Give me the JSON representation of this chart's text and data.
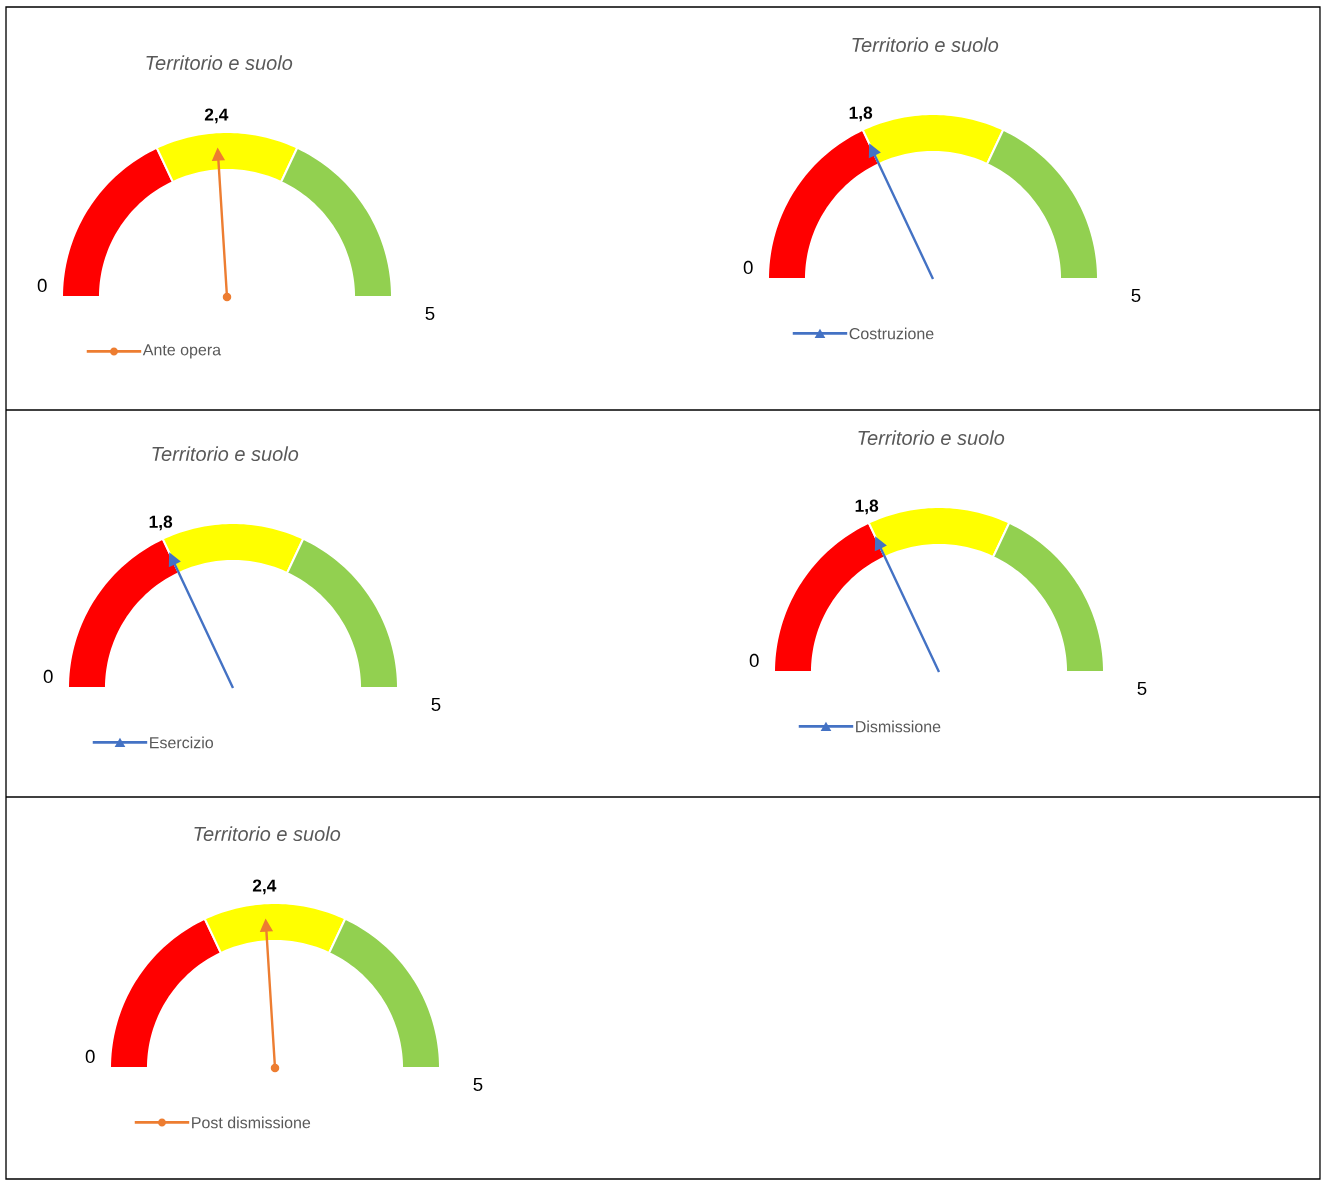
{
  "chart_data": [
    {
      "type": "donut",
      "title": "Territorio e suolo",
      "categories": [
        null,
        null,
        null
      ],
      "values": [
        36,
        28,
        36
      ],
      "colors": [
        "#ff0000",
        "#ffff00",
        "#92d050"
      ],
      "annotations": [
        "0",
        "5",
        "2,4",
        "Ante opera"
      ]
    },
    {
      "type": "donut",
      "title": "Territorio e suolo",
      "categories": [
        null,
        null,
        null
      ],
      "values": [
        36,
        28,
        36
      ],
      "colors": [
        "#ff0000",
        "#ffff00",
        "#92d050"
      ],
      "annotations": [
        "0",
        "5",
        "1,8",
        "Costruzione"
      ]
    },
    {
      "type": "donut",
      "title": "Territorio e suolo",
      "categories": [
        null,
        null,
        null
      ],
      "values": [
        36,
        28,
        36
      ],
      "colors": [
        "#ff0000",
        "#ffff00",
        "#92d050"
      ],
      "annotations": [
        "0",
        "5",
        "1,8",
        "Esercizio"
      ]
    },
    {
      "type": "donut",
      "title": "Territorio e suolo",
      "categories": [
        null,
        null,
        null
      ],
      "values": [
        36,
        28,
        36
      ],
      "colors": [
        "#ff0000",
        "#ffff00",
        "#92d050"
      ],
      "annotations": [
        "0",
        "5",
        "1,8",
        "Dismissione"
      ]
    },
    {
      "type": "donut",
      "title": "Territorio e suolo",
      "categories": [
        null,
        null,
        null
      ],
      "values": [
        36,
        28,
        36
      ],
      "colors": [
        "#ff0000",
        "#ffff00",
        "#92d050"
      ],
      "annotations": [
        "0",
        "5",
        "2,4",
        "Post dismissione"
      ]
    }
  ]
}
